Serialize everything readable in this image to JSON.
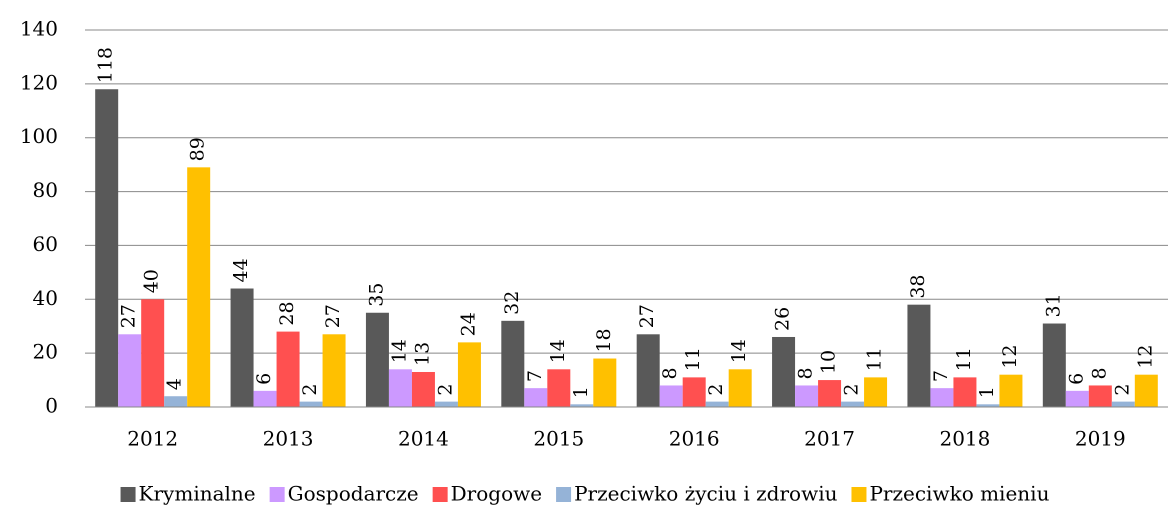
{
  "chart_data": {
    "type": "bar",
    "categories": [
      "2012",
      "2013",
      "2014",
      "2015",
      "2016",
      "2017",
      "2018",
      "2019"
    ],
    "series": [
      {
        "name": "Kryminalne",
        "color": "#595959",
        "values": [
          118,
          44,
          35,
          32,
          27,
          26,
          38,
          31
        ]
      },
      {
        "name": "Gospodarcze",
        "color": "#cc99ff",
        "values": [
          27,
          6,
          14,
          7,
          8,
          8,
          7,
          6
        ]
      },
      {
        "name": "Drogowe",
        "color": "#ff5050",
        "values": [
          40,
          28,
          13,
          14,
          11,
          10,
          11,
          8
        ]
      },
      {
        "name": "Przeciwko życiu i zdrowiu",
        "color": "#95b3d7",
        "values": [
          4,
          2,
          2,
          1,
          2,
          2,
          1,
          2
        ]
      },
      {
        "name": "Przeciwko mieniu",
        "color": "#ffc000",
        "values": [
          89,
          27,
          24,
          18,
          14,
          11,
          12,
          12
        ]
      }
    ],
    "ylim": [
      0,
      140
    ],
    "yticks": [
      0,
      20,
      40,
      60,
      80,
      100,
      120,
      140
    ],
    "grid": true,
    "legend": "bottom"
  }
}
